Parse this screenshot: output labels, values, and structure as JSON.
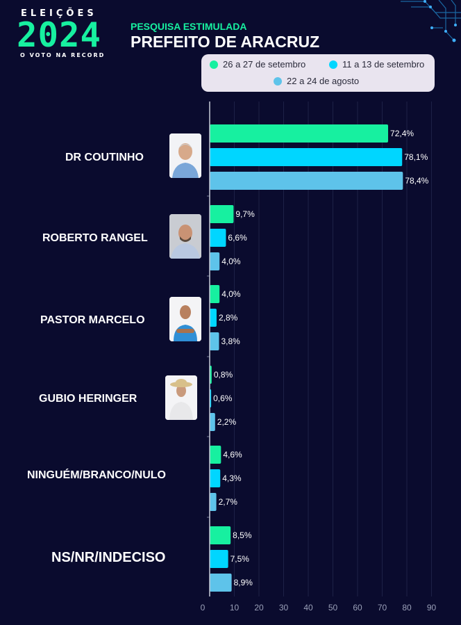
{
  "header": {
    "logo_top": "ELEIÇÕES",
    "logo_year": "2024",
    "logo_sub": "O VOTO NA RECORD",
    "kicker": "PESQUISA ESTIMULADA",
    "title": "PREFEITO DE ARACRUZ"
  },
  "chart_data": {
    "type": "bar",
    "orientation": "horizontal",
    "categories": [
      "DR COUTINHO",
      "ROBERTO RANGEL",
      "PASTOR MARCELO",
      "GUBIO HERINGER",
      "NINGUÉM/BRANCO/NULO",
      "NS/NR/INDECISO"
    ],
    "series": [
      {
        "name": "26 a 27 de setembro",
        "color": "#17f0a0",
        "values": [
          72.4,
          9.7,
          4.0,
          0.8,
          4.6,
          8.5
        ],
        "labels": [
          "72,4%",
          "9,7%",
          "4,0%",
          "0,8%",
          "4,6%",
          "8,5%"
        ]
      },
      {
        "name": "11 a 13 de setembro",
        "color": "#00d6ff",
        "values": [
          78.1,
          6.6,
          2.8,
          0.6,
          4.3,
          7.5
        ],
        "labels": [
          "78,1%",
          "6,6%",
          "2,8%",
          "0,6%",
          "4,3%",
          "7,5%"
        ]
      },
      {
        "name": "22 a 24 de agosto",
        "color": "#5ec3ea",
        "values": [
          78.4,
          4.0,
          3.8,
          2.2,
          2.7,
          8.9
        ],
        "labels": [
          "78,4%",
          "4,0%",
          "3,8%",
          "2,2%",
          "2,7%",
          "8,9%"
        ]
      }
    ],
    "xticks": [
      "0",
      "10",
      "20",
      "30",
      "40",
      "50",
      "60",
      "70",
      "80",
      "90"
    ],
    "xlim": [
      0,
      90
    ],
    "grid": true,
    "legend_position": "top"
  }
}
